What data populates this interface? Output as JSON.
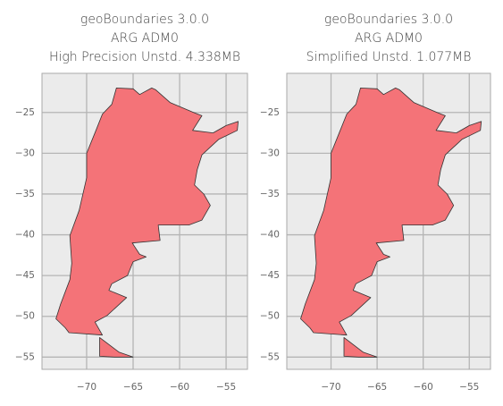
{
  "chart_data": [
    {
      "type": "map",
      "title": [
        "geoBoundaries 3.0.0",
        "ARG ADM0",
        "High Precision Unstd. 4.338MB"
      ],
      "color": "#f47378",
      "xlim": [
        -74.8,
        -52.7
      ],
      "ylim": [
        -56.5,
        -20.2
      ],
      "xticks": [
        {
          "value": -70,
          "label": "−70"
        },
        {
          "value": -65,
          "label": "−65"
        },
        {
          "value": -60,
          "label": "−60"
        },
        {
          "value": -55,
          "label": "−55"
        }
      ],
      "yticks": [
        {
          "value": -25,
          "label": "−25"
        },
        {
          "value": -30,
          "label": "−30"
        },
        {
          "value": -35,
          "label": "−35"
        },
        {
          "value": -40,
          "label": "−40"
        },
        {
          "value": -45,
          "label": "−45"
        },
        {
          "value": -50,
          "label": "−50"
        },
        {
          "value": -55,
          "label": "−55"
        }
      ],
      "grid": true
    },
    {
      "type": "map",
      "title": [
        "geoBoundaries 3.0.0",
        "ARG ADM0",
        "Simplified Unstd. 1.077MB"
      ],
      "color": "#f47378",
      "xlim": [
        -74.8,
        -52.7
      ],
      "ylim": [
        -56.5,
        -20.2
      ],
      "xticks": [
        {
          "value": -70,
          "label": "−70"
        },
        {
          "value": -65,
          "label": "−65"
        },
        {
          "value": -60,
          "label": "−60"
        },
        {
          "value": -55,
          "label": "−55"
        }
      ],
      "yticks": [
        {
          "value": -25,
          "label": "−25"
        },
        {
          "value": -30,
          "label": "−30"
        },
        {
          "value": -35,
          "label": "−35"
        },
        {
          "value": -40,
          "label": "−40"
        },
        {
          "value": -45,
          "label": "−45"
        },
        {
          "value": -50,
          "label": "−50"
        },
        {
          "value": -55,
          "label": "−55"
        }
      ],
      "grid": true
    }
  ]
}
